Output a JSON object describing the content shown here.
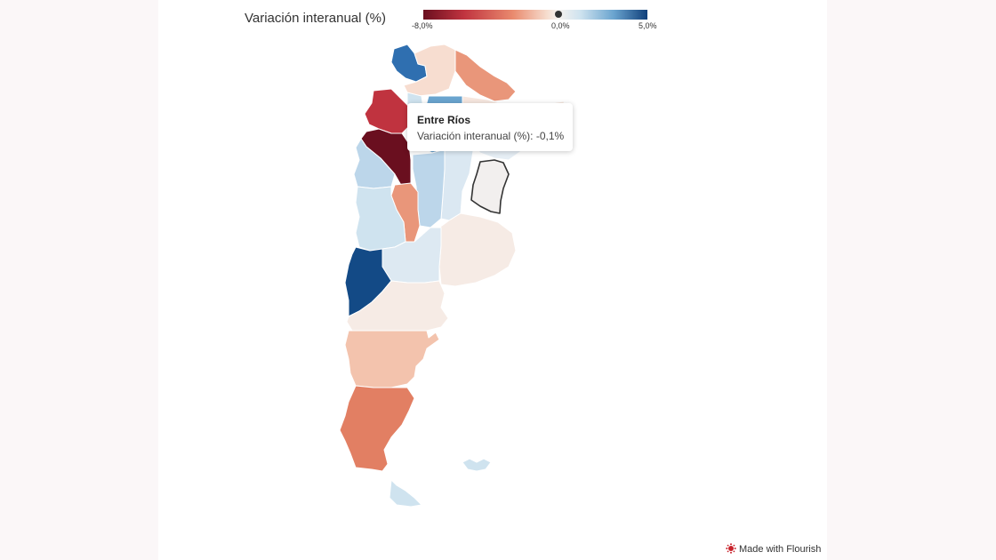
{
  "legend": {
    "title": "Variación interanual (%)",
    "tick_min": "-8,0%",
    "tick_mid": "0,0%",
    "tick_max": "5,0%",
    "range": [
      -8.0,
      5.0
    ],
    "marker_value": 0.0,
    "colors": [
      "#6a0f1f",
      "#c0333f",
      "#e98a6e",
      "#f6dccd",
      "#f7f2ef",
      "#cfe3ef",
      "#6aa4cf",
      "#0f3f7a"
    ]
  },
  "tooltip": {
    "title": "Entre Ríos",
    "line": "Variación interanual (%): -0,1%"
  },
  "credit": {
    "label": "Made with Flourish",
    "logo_icon": "flourish-logo-icon"
  },
  "map": {
    "highlighted": "Entre Ríos",
    "outline_color": "#333333"
  }
}
